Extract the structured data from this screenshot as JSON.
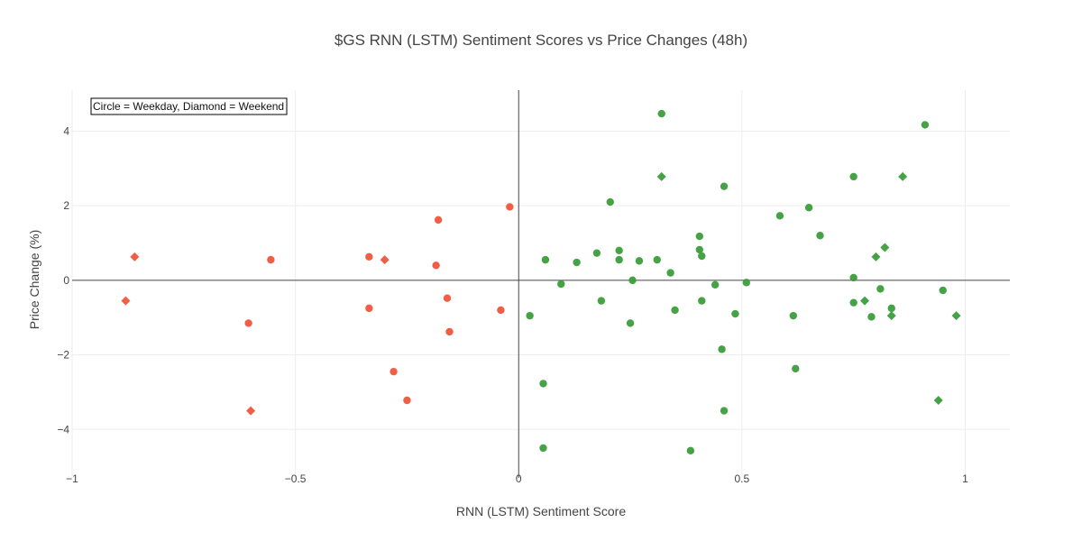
{
  "chart_data": {
    "type": "scatter",
    "title": "$GS RNN (LSTM) Sentiment Scores vs Price Changes (48h)",
    "xlabel": "RNN (LSTM) Sentiment Score",
    "ylabel": "Price Change (%)",
    "xlim": [
      -1.0,
      1.1
    ],
    "ylim": [
      -5.3,
      5.1
    ],
    "x_ticks": [
      -1,
      -0.5,
      0,
      0.5,
      1
    ],
    "x_tick_labels": [
      "−1",
      "−0.5",
      "0",
      "0.5",
      "1"
    ],
    "y_ticks": [
      -4,
      -2,
      0,
      2,
      4
    ],
    "y_tick_labels": [
      "−4",
      "−2",
      "0",
      "2",
      "4"
    ],
    "grid": true,
    "zero_lines": true,
    "annotation": "Circle = Weekday, Diamond = Weekend",
    "colors": {
      "negative": "#ef553b",
      "positive": "#3b9d3b",
      "grid": "#eeeeee",
      "zeroline": "#444444"
    },
    "points": [
      {
        "x": -0.88,
        "y": -0.55,
        "shape": "diamond"
      },
      {
        "x": -0.86,
        "y": 0.63,
        "shape": "diamond"
      },
      {
        "x": -0.6,
        "y": -3.5,
        "shape": "diamond"
      },
      {
        "x": -0.605,
        "y": -1.15,
        "shape": "circle"
      },
      {
        "x": -0.555,
        "y": 0.55,
        "shape": "circle"
      },
      {
        "x": -0.335,
        "y": 0.63,
        "shape": "circle"
      },
      {
        "x": -0.335,
        "y": -0.75,
        "shape": "circle"
      },
      {
        "x": -0.3,
        "y": 0.55,
        "shape": "diamond"
      },
      {
        "x": -0.28,
        "y": -2.45,
        "shape": "circle"
      },
      {
        "x": -0.25,
        "y": -3.22,
        "shape": "circle"
      },
      {
        "x": -0.18,
        "y": 1.62,
        "shape": "circle"
      },
      {
        "x": -0.185,
        "y": 0.4,
        "shape": "circle"
      },
      {
        "x": -0.16,
        "y": -0.48,
        "shape": "circle"
      },
      {
        "x": -0.155,
        "y": -1.38,
        "shape": "circle"
      },
      {
        "x": -0.04,
        "y": -0.8,
        "shape": "circle"
      },
      {
        "x": -0.02,
        "y": 1.97,
        "shape": "circle"
      },
      {
        "x": 0.025,
        "y": -0.95,
        "shape": "circle"
      },
      {
        "x": 0.055,
        "y": -2.77,
        "shape": "circle"
      },
      {
        "x": 0.055,
        "y": -4.5,
        "shape": "circle"
      },
      {
        "x": 0.06,
        "y": 0.55,
        "shape": "circle"
      },
      {
        "x": 0.095,
        "y": -0.1,
        "shape": "circle"
      },
      {
        "x": 0.13,
        "y": 0.48,
        "shape": "circle"
      },
      {
        "x": 0.175,
        "y": 0.73,
        "shape": "circle"
      },
      {
        "x": 0.185,
        "y": -0.55,
        "shape": "circle"
      },
      {
        "x": 0.205,
        "y": 2.1,
        "shape": "circle"
      },
      {
        "x": 0.225,
        "y": 0.8,
        "shape": "circle"
      },
      {
        "x": 0.225,
        "y": 0.55,
        "shape": "circle"
      },
      {
        "x": 0.25,
        "y": -1.15,
        "shape": "circle"
      },
      {
        "x": 0.255,
        "y": 0.0,
        "shape": "circle"
      },
      {
        "x": 0.27,
        "y": 0.52,
        "shape": "circle"
      },
      {
        "x": 0.31,
        "y": 0.55,
        "shape": "circle"
      },
      {
        "x": 0.32,
        "y": 4.47,
        "shape": "circle"
      },
      {
        "x": 0.32,
        "y": 2.78,
        "shape": "diamond"
      },
      {
        "x": 0.34,
        "y": 0.2,
        "shape": "circle"
      },
      {
        "x": 0.35,
        "y": -0.8,
        "shape": "circle"
      },
      {
        "x": 0.385,
        "y": -4.57,
        "shape": "circle"
      },
      {
        "x": 0.405,
        "y": 1.18,
        "shape": "circle"
      },
      {
        "x": 0.405,
        "y": 0.82,
        "shape": "circle"
      },
      {
        "x": 0.41,
        "y": 0.65,
        "shape": "circle"
      },
      {
        "x": 0.41,
        "y": -0.55,
        "shape": "circle"
      },
      {
        "x": 0.44,
        "y": -0.12,
        "shape": "circle"
      },
      {
        "x": 0.455,
        "y": -1.85,
        "shape": "circle"
      },
      {
        "x": 0.46,
        "y": 2.52,
        "shape": "circle"
      },
      {
        "x": 0.46,
        "y": -3.5,
        "shape": "circle"
      },
      {
        "x": 0.485,
        "y": -0.9,
        "shape": "circle"
      },
      {
        "x": 0.51,
        "y": -0.06,
        "shape": "circle"
      },
      {
        "x": 0.585,
        "y": 1.73,
        "shape": "circle"
      },
      {
        "x": 0.615,
        "y": -0.95,
        "shape": "circle"
      },
      {
        "x": 0.62,
        "y": -2.37,
        "shape": "circle"
      },
      {
        "x": 0.65,
        "y": 1.95,
        "shape": "circle"
      },
      {
        "x": 0.675,
        "y": 1.2,
        "shape": "circle"
      },
      {
        "x": 0.75,
        "y": 2.78,
        "shape": "circle"
      },
      {
        "x": 0.75,
        "y": 0.07,
        "shape": "circle"
      },
      {
        "x": 0.75,
        "y": -0.6,
        "shape": "circle"
      },
      {
        "x": 0.775,
        "y": -0.55,
        "shape": "diamond"
      },
      {
        "x": 0.79,
        "y": -0.98,
        "shape": "circle"
      },
      {
        "x": 0.8,
        "y": 0.63,
        "shape": "diamond"
      },
      {
        "x": 0.81,
        "y": -0.23,
        "shape": "circle"
      },
      {
        "x": 0.82,
        "y": 0.88,
        "shape": "diamond"
      },
      {
        "x": 0.835,
        "y": -0.75,
        "shape": "circle"
      },
      {
        "x": 0.835,
        "y": -0.95,
        "shape": "diamond"
      },
      {
        "x": 0.86,
        "y": 2.78,
        "shape": "diamond"
      },
      {
        "x": 0.91,
        "y": 4.17,
        "shape": "circle"
      },
      {
        "x": 0.94,
        "y": -3.22,
        "shape": "diamond"
      },
      {
        "x": 0.95,
        "y": -0.27,
        "shape": "circle"
      },
      {
        "x": 0.98,
        "y": -0.95,
        "shape": "diamond"
      }
    ]
  }
}
